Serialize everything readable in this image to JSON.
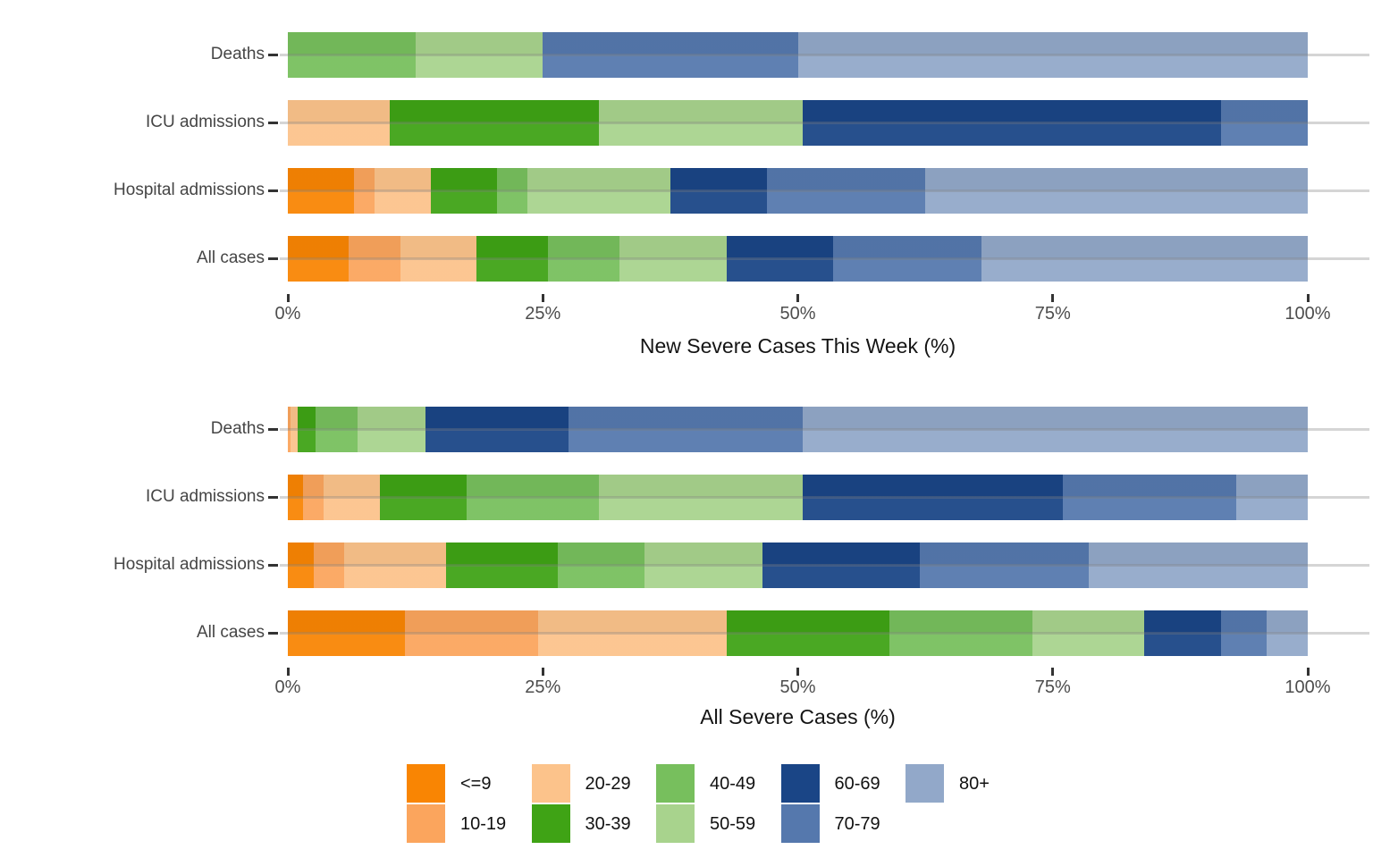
{
  "figure": {
    "background": "#FFFFFF"
  },
  "palette": {
    "<=9": "#F98503",
    "10-19": "#FBA55D",
    "20-29": "#FCC38B",
    "30-39": "#3FA315",
    "40-49": "#77BF5D",
    "50-59": "#A8D38D",
    "60-69": "#1A4586",
    "70-79": "#5578AD",
    "80+": "#92A8C9"
  },
  "legend": {
    "columns": [
      [
        "<=9",
        "10-19"
      ],
      [
        "20-29",
        "30-39"
      ],
      [
        "40-49",
        "50-59"
      ],
      [
        "60-69",
        "70-79"
      ],
      [
        "80+"
      ]
    ]
  },
  "chart_data": [
    {
      "type": "bar",
      "orientation": "horizontal",
      "stacked": true,
      "title": "",
      "xlabel": "New Severe Cases This Week (%)",
      "ylabel": "",
      "xlim": [
        0,
        100
      ],
      "x_ticks": [
        "0%",
        "25%",
        "50%",
        "75%",
        "100%"
      ],
      "grid": "horizontal-major-only",
      "categories": [
        "Deaths",
        "ICU admissions",
        "Hospital admissions",
        "All cases"
      ],
      "age_groups": [
        "<=9",
        "10-19",
        "20-29",
        "30-39",
        "40-49",
        "50-59",
        "60-69",
        "70-79",
        "80+"
      ],
      "series": [
        {
          "name": "<=9",
          "values": [
            0,
            0,
            6.5,
            6
          ]
        },
        {
          "name": "10-19",
          "values": [
            0,
            0,
            2,
            5
          ]
        },
        {
          "name": "20-29",
          "values": [
            0,
            10,
            5.5,
            7.5
          ]
        },
        {
          "name": "30-39",
          "values": [
            0,
            20.5,
            6.5,
            7
          ]
        },
        {
          "name": "40-49",
          "values": [
            12.5,
            0,
            3,
            7
          ]
        },
        {
          "name": "50-59",
          "values": [
            12.5,
            20,
            14,
            10.5
          ]
        },
        {
          "name": "60-69",
          "values": [
            0,
            41,
            9.5,
            10.5
          ]
        },
        {
          "name": "70-79",
          "values": [
            25,
            8.5,
            15.5,
            14.5
          ]
        },
        {
          "name": "80+",
          "values": [
            50,
            0,
            37.5,
            32
          ]
        }
      ]
    },
    {
      "type": "bar",
      "orientation": "horizontal",
      "stacked": true,
      "title": "",
      "xlabel": "All Severe Cases (%)",
      "ylabel": "",
      "xlim": [
        0,
        100
      ],
      "x_ticks": [
        "0%",
        "25%",
        "50%",
        "75%",
        "100%"
      ],
      "grid": "horizontal-major-only",
      "categories": [
        "Deaths",
        "ICU admissions",
        "Hospital admissions",
        "All cases"
      ],
      "age_groups": [
        "<=9",
        "10-19",
        "20-29",
        "30-39",
        "40-49",
        "50-59",
        "60-69",
        "70-79",
        "80+"
      ],
      "series": [
        {
          "name": "<=9",
          "values": [
            0,
            1.5,
            2.5,
            11.5
          ]
        },
        {
          "name": "10-19",
          "values": [
            0.3,
            2,
            3,
            13
          ]
        },
        {
          "name": "20-29",
          "values": [
            0.7,
            5.5,
            10,
            18.5
          ]
        },
        {
          "name": "30-39",
          "values": [
            1.7,
            8.5,
            11,
            16
          ]
        },
        {
          "name": "40-49",
          "values": [
            4.1,
            13,
            8.5,
            14
          ]
        },
        {
          "name": "50-59",
          "values": [
            6.7,
            20,
            11.5,
            11
          ]
        },
        {
          "name": "60-69",
          "values": [
            14,
            25.5,
            15.5,
            7.5
          ]
        },
        {
          "name": "70-79",
          "values": [
            23,
            17,
            16.5,
            4.5
          ]
        },
        {
          "name": "80+",
          "values": [
            49.5,
            7,
            21.5,
            4
          ]
        }
      ]
    }
  ]
}
